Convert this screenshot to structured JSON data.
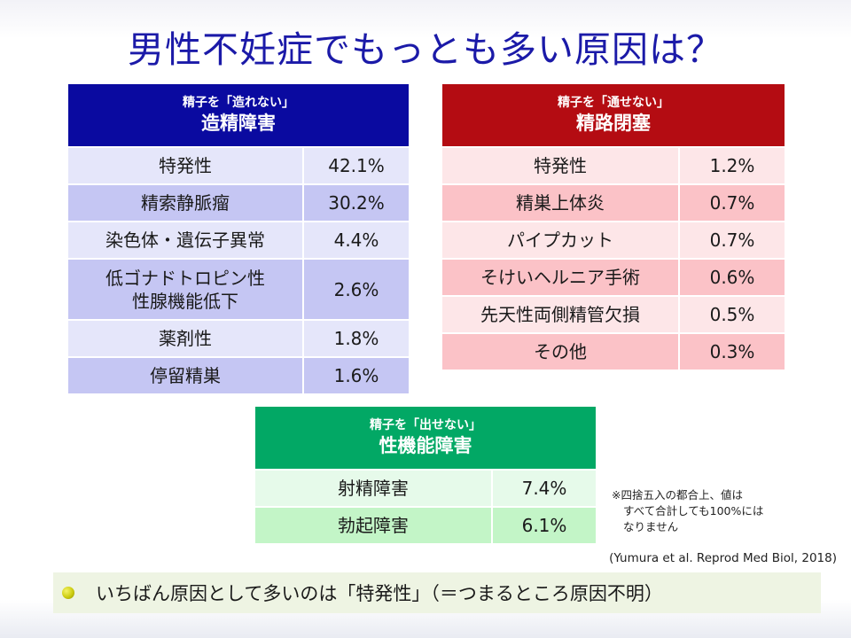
{
  "title": "男性不妊症でもっとも多い原因は？",
  "tables": {
    "a": {
      "subtitle": "精子を「造れない」",
      "heading": "造精障害",
      "rows": [
        {
          "label": "特発性",
          "value": "42.1%"
        },
        {
          "label": "精索静脈瘤",
          "value": "30.2%"
        },
        {
          "label": "染色体・遺伝子異常",
          "value": "4.4%"
        },
        {
          "label_line1": "低ゴナドトロピン性",
          "label_line2": "性腺機能低下",
          "value": "2.6%"
        },
        {
          "label": "薬剤性",
          "value": "1.8%"
        },
        {
          "label": "停留精巣",
          "value": "1.6%"
        }
      ]
    },
    "b": {
      "subtitle": "精子を「通せない」",
      "heading": "精路閉塞",
      "rows": [
        {
          "label": "特発性",
          "value": "1.2%"
        },
        {
          "label": "精巣上体炎",
          "value": "0.7%"
        },
        {
          "label": "パイプカット",
          "value": "0.7%"
        },
        {
          "label": "そけいヘルニア手術",
          "value": "0.6%"
        },
        {
          "label": "先天性両側精管欠損",
          "value": "0.5%"
        },
        {
          "label": "その他",
          "value": "0.3%"
        }
      ]
    },
    "c": {
      "subtitle": "精子を「出せない」",
      "heading": "性機能障害",
      "rows": [
        {
          "label": "射精障害",
          "value": "7.4%"
        },
        {
          "label": "勃起障害",
          "value": "6.1%"
        }
      ]
    }
  },
  "footnote": {
    "line1": "※四捨五入の都合上、値は",
    "line2": "すべて合計しても100%には",
    "line3": "なりません"
  },
  "citation": "(Yumura et al. Reprod Med Biol, 2018)",
  "summary": "いちばん原因として多いのは「特発性」（＝つまるところ原因不明）",
  "colors": {
    "title": "#1b1aa8",
    "table_a_header": "#0a0aa0",
    "table_b_header": "#b40c12",
    "table_c_header": "#02a865"
  }
}
